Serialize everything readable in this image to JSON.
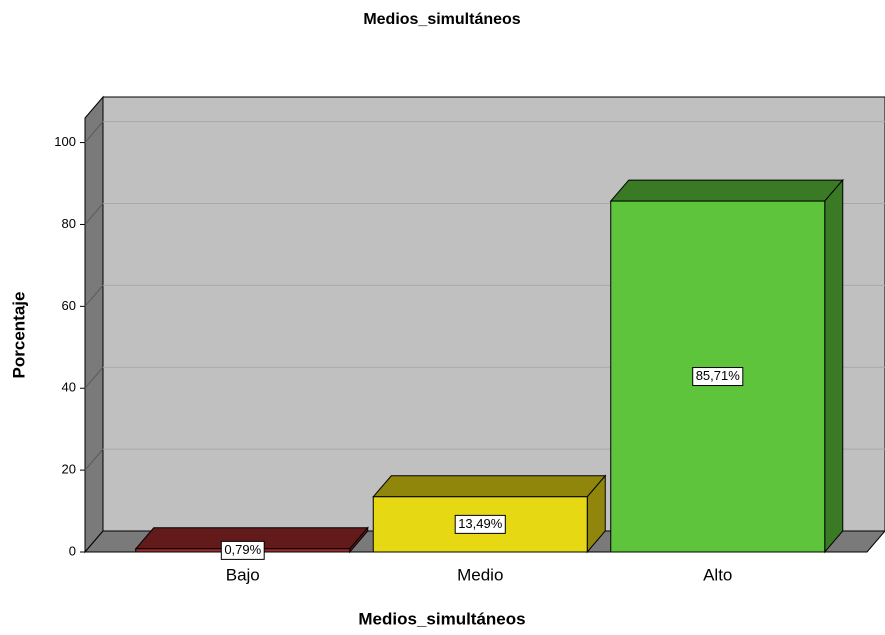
{
  "chart_data": {
    "type": "bar3d",
    "title": "Medios_simultáneos",
    "x_label": "Medios_simultáneos",
    "y_label": "Porcentaje",
    "categories": [
      "Bajo",
      "Medio",
      "Alto"
    ],
    "values": [
      0.79,
      13.49,
      85.71
    ],
    "value_labels": [
      "0,79%",
      "13,49%",
      "85,71%"
    ],
    "colors": [
      "#a02a2c",
      "#e6d812",
      "#5ec43b"
    ],
    "ylim": [
      0,
      106
    ],
    "yticks": [
      0,
      20,
      40,
      60,
      80,
      100
    ],
    "grid": true
  }
}
